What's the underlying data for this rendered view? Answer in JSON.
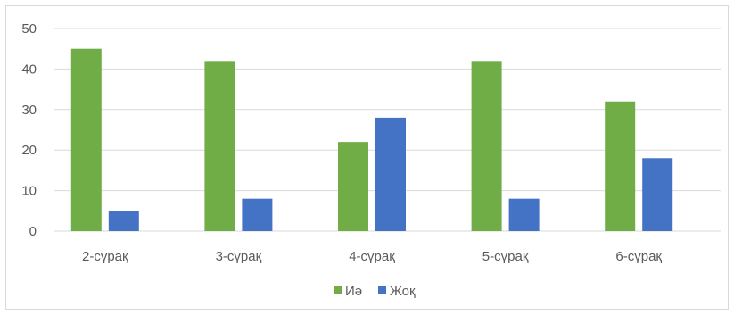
{
  "chart_data": {
    "type": "bar",
    "categories": [
      "2-сұрақ",
      "3-сұрақ",
      "4-сұрақ",
      "5-сұрақ",
      "6-сұрақ"
    ],
    "series": [
      {
        "name": "Иә",
        "values": [
          45,
          42,
          22,
          42,
          32
        ],
        "color": "#70ad47"
      },
      {
        "name": "Жоқ",
        "values": [
          5,
          8,
          28,
          8,
          18
        ],
        "color": "#4472c4"
      }
    ],
    "yticks": [
      "0",
      "10",
      "20",
      "30",
      "40",
      "50"
    ],
    "ylim": [
      0,
      50
    ],
    "grid": true,
    "legend": "bottom"
  }
}
